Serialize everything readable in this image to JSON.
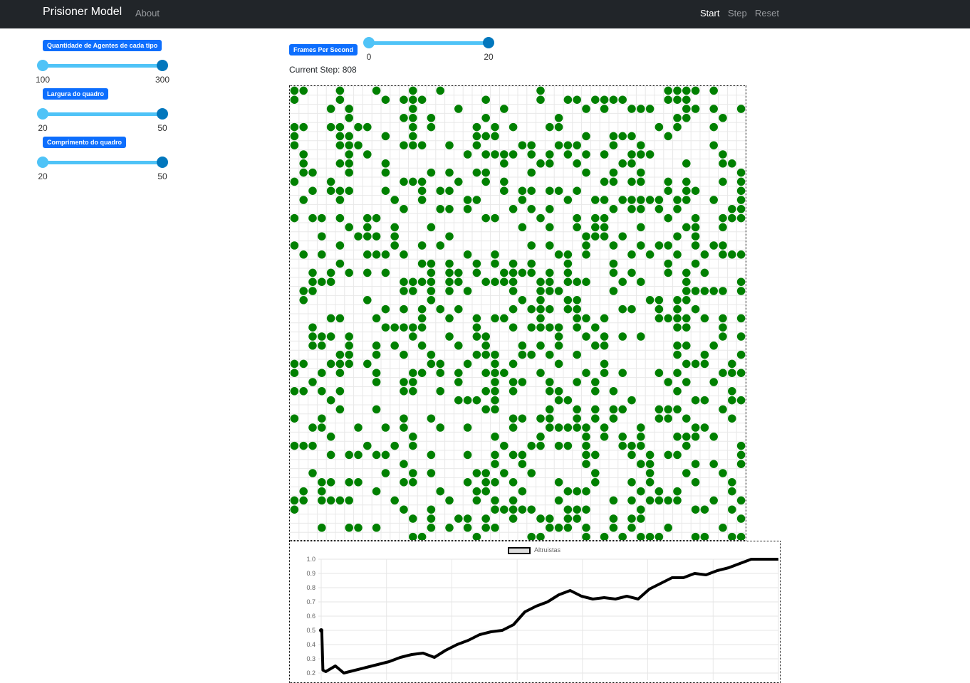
{
  "navbar": {
    "brand": "Prisioner Model",
    "about": "About",
    "start": "Start",
    "step": "Step",
    "reset": "Reset"
  },
  "controls": {
    "agents": {
      "label": "Quantidade de Agentes de cada tipo",
      "min": "100",
      "max": "300"
    },
    "width": {
      "label": "Largura do quadro",
      "min": "20",
      "max": "50"
    },
    "length": {
      "label": "Comprimento do quadro",
      "min": "20",
      "max": "50"
    },
    "fps": {
      "label": "Frames Per Second",
      "min": "0",
      "max": "20"
    }
  },
  "status": {
    "current_step": "Current Step: 808"
  },
  "grid": {
    "cols": 50,
    "rows": 50,
    "agent_color": "#008000",
    "grid_line_color": "#e8e8e8",
    "agent_density": 0.3,
    "seed": 808
  },
  "chart_data": {
    "type": "line",
    "legend": [
      "Altruistas"
    ],
    "series": [
      {
        "name": "Altruistas",
        "color": "#000000",
        "x": [
          0,
          1,
          3,
          8,
          25,
          40,
          60,
          80,
          100,
          120,
          140,
          160,
          180,
          200,
          220,
          240,
          260,
          280,
          300,
          320,
          340,
          360,
          380,
          400,
          420,
          440,
          460,
          480,
          500,
          520,
          540,
          560,
          580,
          600,
          620,
          640,
          660,
          680,
          700,
          720,
          740,
          760,
          780,
          800,
          808
        ],
        "values": [
          0.5,
          0.5,
          0.22,
          0.21,
          0.25,
          0.2,
          0.22,
          0.24,
          0.26,
          0.28,
          0.31,
          0.33,
          0.34,
          0.31,
          0.36,
          0.4,
          0.43,
          0.47,
          0.49,
          0.5,
          0.54,
          0.63,
          0.67,
          0.7,
          0.75,
          0.78,
          0.74,
          0.72,
          0.73,
          0.72,
          0.74,
          0.72,
          0.79,
          0.83,
          0.87,
          0.87,
          0.9,
          0.89,
          0.92,
          0.94,
          0.97,
          1.0,
          1.0,
          1.0,
          1.0
        ]
      }
    ],
    "ylim": [
      0.2,
      1.0
    ],
    "yticks": [
      "1.0",
      "0.9",
      "0.8",
      "0.7",
      "0.6",
      "0.5",
      "0.4",
      "0.3",
      "0.2"
    ],
    "grid": true
  }
}
